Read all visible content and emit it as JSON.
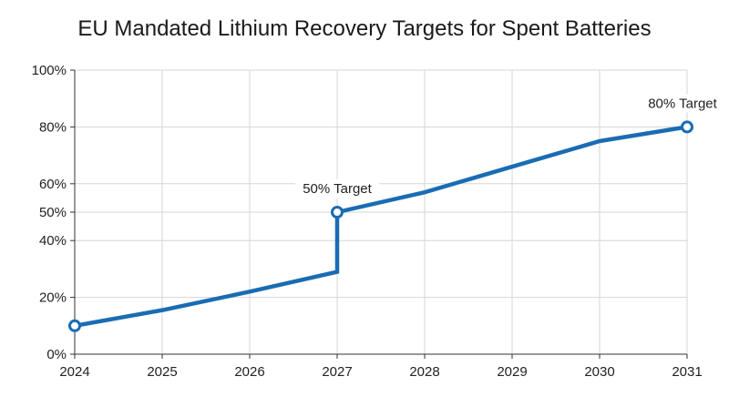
{
  "chart_data": {
    "type": "line",
    "title": "EU Mandated Lithium Recovery Targets for Spent Batteries",
    "xlabel": "",
    "ylabel": "",
    "xlim": [
      2024,
      2031
    ],
    "ylim": [
      0,
      100
    ],
    "x_ticks": [
      2024,
      2025,
      2026,
      2027,
      2028,
      2029,
      2030,
      2031
    ],
    "y_ticks": [
      0,
      20,
      40,
      50,
      60,
      80,
      100
    ],
    "y_tick_labels": [
      "0%",
      "20%",
      "40%",
      "50%",
      "60%",
      "80%",
      "100%"
    ],
    "grid": true,
    "legend": "none",
    "series": [
      {
        "color": "#1a6cb3",
        "points": [
          {
            "x": 2024,
            "y": 10
          },
          {
            "x": 2025,
            "y": 15.5
          },
          {
            "x": 2026,
            "y": 22
          },
          {
            "x": 2027,
            "y": 29
          },
          {
            "x": 2027,
            "y": 50
          },
          {
            "x": 2028,
            "y": 57
          },
          {
            "x": 2029,
            "y": 66
          },
          {
            "x": 2030,
            "y": 75
          },
          {
            "x": 2031,
            "y": 80
          }
        ]
      }
    ],
    "markers": [
      {
        "x": 2024,
        "y": 10
      },
      {
        "x": 2027,
        "y": 50
      },
      {
        "x": 2031,
        "y": 80
      }
    ],
    "annotations": [
      {
        "text": "50% Target",
        "x": 2027,
        "y": 50
      },
      {
        "text": "80% Target",
        "x": 2031,
        "y": 80
      }
    ]
  }
}
